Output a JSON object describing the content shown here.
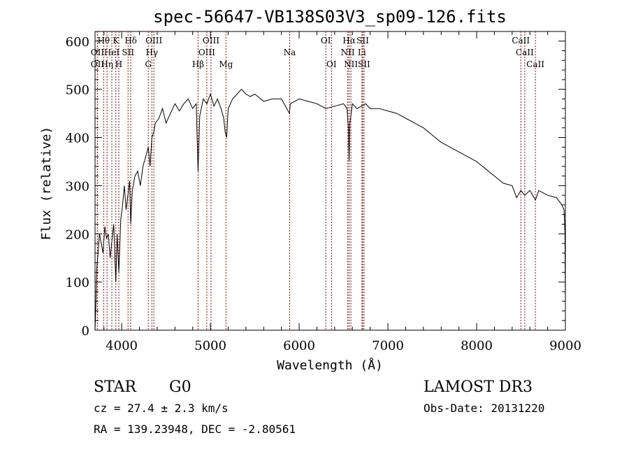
{
  "chart_data": {
    "type": "line",
    "title": "spec-56647-VB138S03V3_sp09-126.fits",
    "xlabel": "Wavelength (Å)",
    "ylabel": "Flux (relative)",
    "xlim": [
      3700,
      9000
    ],
    "ylim": [
      0,
      620
    ],
    "x_ticks": [
      4000,
      5000,
      6000,
      7000,
      8000,
      9000
    ],
    "x_tick_labels": [
      "4000",
      "5000",
      "6000",
      "7000",
      "8000",
      "9000"
    ],
    "y_ticks": [
      0,
      100,
      200,
      300,
      400,
      500,
      600
    ],
    "y_tick_labels": [
      "0",
      "100",
      "200",
      "300",
      "400",
      "500",
      "600"
    ],
    "grid": false,
    "series": [
      {
        "name": "spectrum",
        "color": "#000000",
        "x": [
          3700,
          3710,
          3720,
          3735,
          3750,
          3770,
          3790,
          3810,
          3830,
          3850,
          3870,
          3890,
          3910,
          3934,
          3950,
          3968,
          3990,
          4010,
          4030,
          4050,
          4070,
          4090,
          4102,
          4120,
          4150,
          4180,
          4210,
          4240,
          4270,
          4300,
          4320,
          4340,
          4360,
          4380,
          4420,
          4460,
          4500,
          4550,
          4600,
          4650,
          4700,
          4750,
          4800,
          4840,
          4861,
          4880,
          4920,
          4960,
          5000,
          5040,
          5080,
          5120,
          5150,
          5167,
          5183,
          5200,
          5250,
          5300,
          5350,
          5400,
          5450,
          5500,
          5600,
          5700,
          5800,
          5890,
          5900,
          6000,
          6100,
          6200,
          6300,
          6400,
          6500,
          6540,
          6555,
          6563,
          6572,
          6600,
          6650,
          6700,
          6750,
          6800,
          6900,
          7000,
          7100,
          7200,
          7300,
          7400,
          7500,
          7600,
          7700,
          7800,
          7900,
          8000,
          8100,
          8200,
          8300,
          8400,
          8450,
          8498,
          8542,
          8600,
          8662,
          8700,
          8800,
          8900,
          8960,
          8985,
          8995,
          9000
        ],
        "y": [
          0,
          60,
          130,
          160,
          200,
          180,
          160,
          215,
          190,
          200,
          150,
          185,
          220,
          100,
          200,
          120,
          230,
          260,
          300,
          250,
          280,
          310,
          220,
          290,
          320,
          330,
          300,
          340,
          360,
          380,
          340,
          400,
          410,
          430,
          440,
          460,
          430,
          450,
          470,
          455,
          470,
          480,
          460,
          470,
          330,
          445,
          480,
          470,
          490,
          465,
          480,
          460,
          440,
          410,
          400,
          460,
          480,
          490,
          500,
          490,
          485,
          490,
          475,
          480,
          480,
          450,
          470,
          480,
          475,
          470,
          460,
          465,
          470,
          460,
          420,
          350,
          430,
          470,
          460,
          465,
          470,
          460,
          460,
          455,
          450,
          440,
          430,
          420,
          405,
          390,
          380,
          370,
          360,
          350,
          335,
          320,
          305,
          300,
          275,
          290,
          280,
          290,
          270,
          290,
          280,
          275,
          260,
          250,
          200,
          50
        ]
      }
    ],
    "line_markers": [
      {
        "wavelength": 3727,
        "label": "OII",
        "row": 2
      },
      {
        "wavelength": 3727,
        "label": "OII",
        "row": 3
      },
      {
        "wavelength": 3797,
        "label": "Hθ",
        "row": 1
      },
      {
        "wavelength": 3835,
        "label": "Hη",
        "row": 3
      },
      {
        "wavelength": 3889,
        "label": "HeI",
        "row": 2
      },
      {
        "wavelength": 3934,
        "label": "K",
        "row": 1
      },
      {
        "wavelength": 3968,
        "label": "H",
        "row": 3
      },
      {
        "wavelength": 4072,
        "label": "SII",
        "row": 2
      },
      {
        "wavelength": 4102,
        "label": "Hδ",
        "row": 1
      },
      {
        "wavelength": 4300,
        "label": "G",
        "row": 3
      },
      {
        "wavelength": 4340,
        "label": "Hγ",
        "row": 2
      },
      {
        "wavelength": 4363,
        "label": "OIII",
        "row": 1
      },
      {
        "wavelength": 4861,
        "label": "Hβ",
        "row": 3
      },
      {
        "wavelength": 4959,
        "label": "OIII",
        "row": 2
      },
      {
        "wavelength": 5007,
        "label": "OIII",
        "row": 1
      },
      {
        "wavelength": 5175,
        "label": "Mg",
        "row": 3
      },
      {
        "wavelength": 5893,
        "label": "Na",
        "row": 2
      },
      {
        "wavelength": 6300,
        "label": "OI",
        "row": 1
      },
      {
        "wavelength": 6364,
        "label": "OI",
        "row": 3
      },
      {
        "wavelength": 6548,
        "label": "NII",
        "row": 2
      },
      {
        "wavelength": 6563,
        "label": "Hα",
        "row": 1
      },
      {
        "wavelength": 6583,
        "label": "NII",
        "row": 3
      },
      {
        "wavelength": 6707,
        "label": "Li",
        "row": 2
      },
      {
        "wavelength": 6716,
        "label": "SII",
        "row": 1
      },
      {
        "wavelength": 6731,
        "label": "SII",
        "row": 3
      },
      {
        "wavelength": 8498,
        "label": "CaII",
        "row": 1
      },
      {
        "wavelength": 8542,
        "label": "CaII",
        "row": 2
      },
      {
        "wavelength": 8662,
        "label": "CaII",
        "row": 3
      }
    ],
    "marker_color": "#c00000"
  },
  "footer": {
    "object_class": "STAR",
    "subclass": "G0",
    "redshift": "cz = 27.4 ± 2.3 km/s",
    "coords": "RA = 139.23948, DEC =  -2.80561",
    "survey": "LAMOST DR3",
    "obs_date": "Obs-Date: 20131220"
  }
}
